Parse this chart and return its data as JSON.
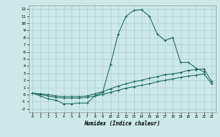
{
  "xlabel": "Humidex (Indice chaleur)",
  "bg_color": "#cce8e8",
  "line_color": "#1a6b5a",
  "grid_color": "#aacece",
  "xlim": [
    -0.5,
    23.5
  ],
  "ylim": [
    -2.5,
    12.5
  ],
  "xticks": [
    0,
    1,
    2,
    3,
    4,
    5,
    6,
    7,
    8,
    9,
    10,
    11,
    12,
    13,
    14,
    15,
    16,
    17,
    18,
    19,
    20,
    21,
    22,
    23
  ],
  "yticks": [
    -2,
    -1,
    0,
    1,
    2,
    3,
    4,
    5,
    6,
    7,
    8,
    9,
    10,
    11,
    12
  ],
  "line1_x": [
    0,
    1,
    2,
    3,
    4,
    5,
    6,
    7,
    8,
    9,
    10,
    11,
    12,
    13,
    14,
    15,
    16,
    17,
    18,
    19,
    20,
    21,
    22
  ],
  "line1_y": [
    0.2,
    -0.2,
    -0.6,
    -0.8,
    -1.3,
    -1.3,
    -1.2,
    -1.2,
    -0.2,
    0.3,
    4.2,
    8.5,
    11.0,
    11.8,
    11.9,
    11.0,
    8.5,
    7.6,
    8.0,
    4.5,
    4.5,
    3.7,
    3.2
  ],
  "line2_x": [
    0,
    1,
    2,
    3,
    4,
    5,
    6,
    7,
    8,
    9,
    10,
    11,
    12,
    13,
    14,
    15,
    16,
    17,
    18,
    19,
    20,
    21,
    22,
    23
  ],
  "line2_y": [
    0.2,
    0.1,
    0.0,
    -0.2,
    -0.3,
    -0.3,
    -0.3,
    -0.2,
    0.1,
    0.4,
    0.8,
    1.2,
    1.5,
    1.8,
    2.0,
    2.3,
    2.5,
    2.8,
    2.9,
    3.1,
    3.4,
    3.5,
    3.6,
    1.8
  ],
  "line3_x": [
    0,
    1,
    2,
    3,
    4,
    5,
    6,
    7,
    8,
    9,
    10,
    11,
    12,
    13,
    14,
    15,
    16,
    17,
    18,
    19,
    20,
    21,
    22,
    23
  ],
  "line3_y": [
    0.2,
    0.0,
    -0.2,
    -0.4,
    -0.5,
    -0.5,
    -0.5,
    -0.4,
    -0.2,
    0.0,
    0.3,
    0.6,
    0.9,
    1.1,
    1.3,
    1.5,
    1.8,
    2.0,
    2.2,
    2.4,
    2.6,
    2.7,
    2.9,
    1.5
  ]
}
